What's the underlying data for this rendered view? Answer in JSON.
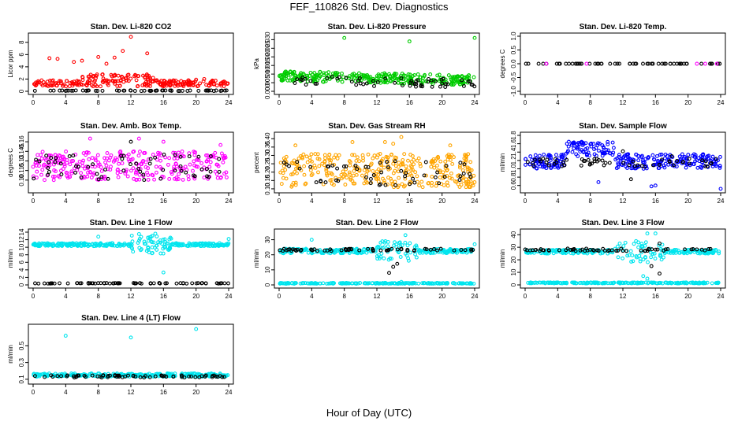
{
  "page": {
    "title": "FEF_110826  Std. Dev. Diagnostics",
    "xlabel": "Hour of Day (UTC)"
  },
  "chart_data": [
    {
      "type": "scatter",
      "title": "Stan. Dev. Li-820 CO2",
      "ylabel": "Licor ppm",
      "xlim": [
        0,
        24
      ],
      "ylim": [
        0,
        9
      ],
      "xticks": [
        0,
        4,
        8,
        12,
        16,
        20,
        24
      ],
      "xtick_labels": [
        "0",
        "4",
        "8",
        "12",
        "16",
        "20",
        "24"
      ],
      "yticks": [
        0,
        2,
        4,
        6,
        8
      ],
      "ytick_labels": [
        "0",
        "2",
        "4",
        "6",
        "8"
      ],
      "series": [
        {
          "color": "#ff0000",
          "gen": {
            "base": 0.8,
            "spread": 1.0,
            "spread_day": 2.0,
            "day_start": 6,
            "day_end": 15,
            "n": 260
          },
          "outliers": [
            [
              2,
              5.4
            ],
            [
              3,
              5.3
            ],
            [
              5,
              4.8
            ],
            [
              6,
              5.0
            ],
            [
              8,
              5.6
            ],
            [
              9,
              4.5
            ],
            [
              10,
              5.5
            ],
            [
              11,
              6.6
            ],
            [
              12,
              8.9
            ],
            [
              14,
              6.2
            ],
            [
              20,
              1.9
            ],
            [
              21,
              2.0
            ]
          ]
        },
        {
          "color": "#000000",
          "gen": {
            "base": 0.05,
            "spread": 0.1,
            "n": 60
          }
        }
      ]
    },
    {
      "type": "scatter",
      "title": "Stan. Dev. Li-820 Pressure",
      "ylabel": "kPa",
      "xlim": [
        0,
        24
      ],
      "ylim": [
        0,
        0.032
      ],
      "xticks": [
        0,
        4,
        8,
        12,
        16,
        20,
        24
      ],
      "xtick_labels": [
        "0",
        "4",
        "8",
        "12",
        "16",
        "20",
        "24"
      ],
      "yticks": [
        0,
        0.005,
        0.01,
        0.015,
        0.02,
        0.025,
        0.03
      ],
      "ytick_labels": [
        "0.000",
        "0.005",
        "0.010",
        "0.015",
        "0.020",
        "0.025",
        "0.030"
      ],
      "series": [
        {
          "color": "#00cc00",
          "gen": {
            "base": 0.006,
            "spread": 0.006,
            "trend": -0.0025,
            "n": 320
          },
          "outliers": [
            [
              8,
              0.031
            ],
            [
              16,
              0.029
            ],
            [
              24,
              0.031
            ]
          ]
        },
        {
          "color": "#000000",
          "gen": {
            "base": 0.004,
            "spread": 0.005,
            "trend": -0.002,
            "n": 60
          }
        }
      ]
    },
    {
      "type": "scatter",
      "title": "Stan. Dev. Li-820 Temp.",
      "ylabel": "degrees C",
      "xlim": [
        0,
        24
      ],
      "ylim": [
        -1,
        1
      ],
      "xticks": [
        0,
        4,
        8,
        12,
        16,
        20,
        24
      ],
      "xtick_labels": [
        "0",
        "4",
        "8",
        "12",
        "16",
        "20",
        "24"
      ],
      "yticks": [
        -1,
        -0.5,
        0,
        0.5,
        1
      ],
      "ytick_labels": [
        "-1.0",
        "-0.5",
        "0.0",
        "0.5",
        "1.0"
      ],
      "series": [
        {
          "color": "#000000",
          "gen": {
            "base": 0,
            "spread": 0,
            "n": 60
          }
        },
        {
          "color": "#ff00ff",
          "gen": {
            "base": 0,
            "spread": 0,
            "n": 5
          }
        }
      ]
    },
    {
      "type": "scatter",
      "title": "Stan. Dev. Amb. Box Temp.",
      "ylabel": "degrees C",
      "xlim": [
        0,
        24
      ],
      "ylim": [
        0.085,
        0.17
      ],
      "xticks": [
        0,
        4,
        8,
        12,
        16,
        20,
        24
      ],
      "xtick_labels": [
        "0",
        "4",
        "8",
        "12",
        "16",
        "20",
        "24"
      ],
      "yticks": [
        0.1,
        0.115,
        0.13,
        0.145,
        0.16
      ],
      "ytick_labels": [
        "0.10",
        "0.115",
        "0.13",
        "0.145",
        "0.16"
      ],
      "series": [
        {
          "color": "#ff00ff",
          "gen": {
            "base": 0.1,
            "spread": 0.045,
            "n": 300
          },
          "outliers": [
            [
              7,
              0.165
            ],
            [
              13,
              0.165
            ],
            [
              16,
              0.16
            ],
            [
              23,
              0.155
            ]
          ]
        },
        {
          "color": "#000000",
          "gen": {
            "base": 0.1,
            "spread": 0.04,
            "n": 60
          },
          "outliers": [
            [
              12,
              0.16
            ]
          ]
        }
      ]
    },
    {
      "type": "scatter",
      "title": "Stan. Dev. Gas Stream RH",
      "ylabel": "percent",
      "xlim": [
        0,
        24
      ],
      "ylim": [
        0.095,
        0.42
      ],
      "xticks": [
        0,
        4,
        8,
        12,
        16,
        20,
        24
      ],
      "xtick_labels": [
        "0",
        "4",
        "8",
        "12",
        "16",
        "20",
        "24"
      ],
      "yticks": [
        0.1,
        0.15,
        0.2,
        0.25,
        0.3,
        0.35,
        0.4
      ],
      "ytick_labels": [
        "0.10",
        "0.15",
        "0.20",
        "0.25",
        "0.30",
        "0.35",
        "0.40"
      ],
      "series": [
        {
          "color": "#ffa500",
          "gen": {
            "base": 0.11,
            "spread": 0.2,
            "n": 340
          },
          "outliers": [
            [
              2,
              0.36
            ],
            [
              9,
              0.38
            ],
            [
              13,
              0.38
            ],
            [
              14,
              0.37
            ],
            [
              15,
              0.41
            ],
            [
              21,
              0.36
            ]
          ]
        },
        {
          "color": "#000000",
          "gen": {
            "base": 0.12,
            "spread": 0.15,
            "n": 55
          }
        }
      ]
    },
    {
      "type": "scatter",
      "title": "Stan. Dev. Sample Flow",
      "ylabel": "ml/min",
      "xlim": [
        0,
        24
      ],
      "ylim": [
        0.5,
        1.8
      ],
      "xticks": [
        0,
        4,
        8,
        12,
        16,
        20,
        24
      ],
      "xtick_labels": [
        "0",
        "4",
        "8",
        "12",
        "16",
        "20",
        "24"
      ],
      "yticks": [
        0.6,
        0.8,
        1.0,
        1.2,
        1.4,
        1.6,
        1.8
      ],
      "ytick_labels": [
        "0.6",
        "0.8",
        "1.0",
        "1.2",
        "1.4",
        "1.6",
        "1.8"
      ],
      "series": [
        {
          "color": "#0000ff",
          "gen": {
            "base": 1.0,
            "spread": 0.35,
            "day_start": 5,
            "day_end": 11,
            "day_shift": 0.3,
            "n": 320
          },
          "outliers": [
            [
              16,
              0.6
            ],
            [
              15.5,
              0.58
            ],
            [
              24,
              0.52
            ],
            [
              9,
              0.68
            ]
          ]
        },
        {
          "color": "#000000",
          "gen": {
            "base": 1.05,
            "spread": 0.2,
            "n": 60
          },
          "outliers": [
            [
              12,
              1.42
            ],
            [
              18,
              1.3
            ],
            [
              13,
              0.75
            ]
          ]
        }
      ]
    },
    {
      "type": "scatter",
      "title": "Stan. Dev. Line 1 Flow",
      "ylabel": "ml/min",
      "xlim": [
        0,
        24
      ],
      "ylim": [
        0,
        14
      ],
      "xticks": [
        0,
        4,
        8,
        12,
        16,
        20,
        24
      ],
      "xtick_labels": [
        "0",
        "4",
        "8",
        "12",
        "16",
        "20",
        "24"
      ],
      "yticks": [
        0,
        2,
        4,
        6,
        8,
        10,
        12,
        14
      ],
      "ytick_labels": [
        "0",
        "2",
        "4",
        "6",
        "8",
        "10",
        "12",
        "14"
      ],
      "series": [
        {
          "color": "#00e5ee",
          "gen": {
            "base": 10.3,
            "spread": 0.8,
            "day_start": 12,
            "day_end": 17,
            "day_scatter": 4,
            "n": 320
          },
          "outliers": [
            [
              13,
              13.5
            ],
            [
              15,
              13.6
            ],
            [
              16,
              3.3
            ],
            [
              8,
              12.8
            ],
            [
              24,
              12.2
            ]
          ]
        },
        {
          "color": "#000000",
          "gen": {
            "base": 0.35,
            "spread": 0.15,
            "n": 70
          }
        }
      ]
    },
    {
      "type": "scatter",
      "title": "Stan. Dev. Line 2 Flow",
      "ylabel": "ml/min",
      "xlim": [
        0,
        24
      ],
      "ylim": [
        0,
        35
      ],
      "xticks": [
        0,
        4,
        8,
        12,
        16,
        20,
        24
      ],
      "xtick_labels": [
        "0",
        "4",
        "8",
        "12",
        "16",
        "20",
        "24"
      ],
      "yticks": [
        0,
        10,
        20,
        30
      ],
      "ytick_labels": [
        "0",
        "10",
        "20",
        "30"
      ],
      "series": [
        {
          "color": "#00e5ee",
          "gen": {
            "base": 21,
            "spread": 3,
            "day_start": 12,
            "day_end": 17,
            "day_scatter": 10,
            "n": 260
          },
          "outliers": [
            [
              15,
              2
            ],
            [
              15.5,
              33
            ],
            [
              4,
              30
            ],
            [
              24,
              27
            ]
          ]
        },
        {
          "color": "#00e5ee",
          "gen": {
            "base": 0.8,
            "spread": 0.5,
            "n": 200
          }
        },
        {
          "color": "#000000",
          "gen": {
            "base": 22.5,
            "spread": 1.5,
            "n": 60
          },
          "outliers": [
            [
              13.5,
              8
            ],
            [
              14,
              12
            ],
            [
              14.5,
              14
            ],
            [
              15,
              24
            ]
          ]
        }
      ]
    },
    {
      "type": "scatter",
      "title": "Stan. Dev. Line 3 Flow",
      "ylabel": "ml/min",
      "xlim": [
        0,
        24
      ],
      "ylim": [
        0,
        42
      ],
      "xticks": [
        0,
        4,
        8,
        12,
        16,
        20,
        24
      ],
      "xtick_labels": [
        "0",
        "4",
        "8",
        "12",
        "16",
        "20",
        "24"
      ],
      "yticks": [
        0,
        10,
        20,
        30,
        40
      ],
      "ytick_labels": [
        "0",
        "10",
        "20",
        "30",
        "40"
      ],
      "series": [
        {
          "color": "#00e5ee",
          "gen": {
            "base": 25,
            "spread": 3,
            "day_start": 11,
            "day_end": 17,
            "day_scatter": 14,
            "n": 260
          },
          "outliers": [
            [
              15,
              41
            ],
            [
              16,
              41
            ],
            [
              14.5,
              7
            ],
            [
              15,
              5
            ]
          ]
        },
        {
          "color": "#00e5ee",
          "gen": {
            "base": 1.2,
            "spread": 0.8,
            "n": 200
          }
        },
        {
          "color": "#000000",
          "gen": {
            "base": 27,
            "spread": 2,
            "n": 60
          },
          "outliers": [
            [
              16.5,
              9
            ],
            [
              15.5,
              15
            ],
            [
              16.5,
              33
            ]
          ]
        }
      ]
    },
    {
      "type": "scatter",
      "title": "Stan. Dev. Line 4 (LT) Flow",
      "ylabel": "ml/min",
      "xlim": [
        0,
        24
      ],
      "ylim": [
        0.08,
        0.72
      ],
      "xticks": [
        0,
        4,
        8,
        12,
        16,
        20,
        24
      ],
      "xtick_labels": [
        "0",
        "4",
        "8",
        "12",
        "16",
        "20",
        "24"
      ],
      "yticks": [
        0.1,
        0.3,
        0.5
      ],
      "ytick_labels": [
        "0.1",
        "0.3",
        "0.5"
      ],
      "series": [
        {
          "color": "#00e5ee",
          "gen": {
            "base": 0.13,
            "spread": 0.04,
            "n": 300
          },
          "outliers": [
            [
              4,
              0.62
            ],
            [
              12,
              0.6
            ],
            [
              20,
              0.7
            ]
          ]
        },
        {
          "color": "#000000",
          "gen": {
            "base": 0.12,
            "spread": 0.03,
            "n": 70
          }
        }
      ]
    }
  ]
}
